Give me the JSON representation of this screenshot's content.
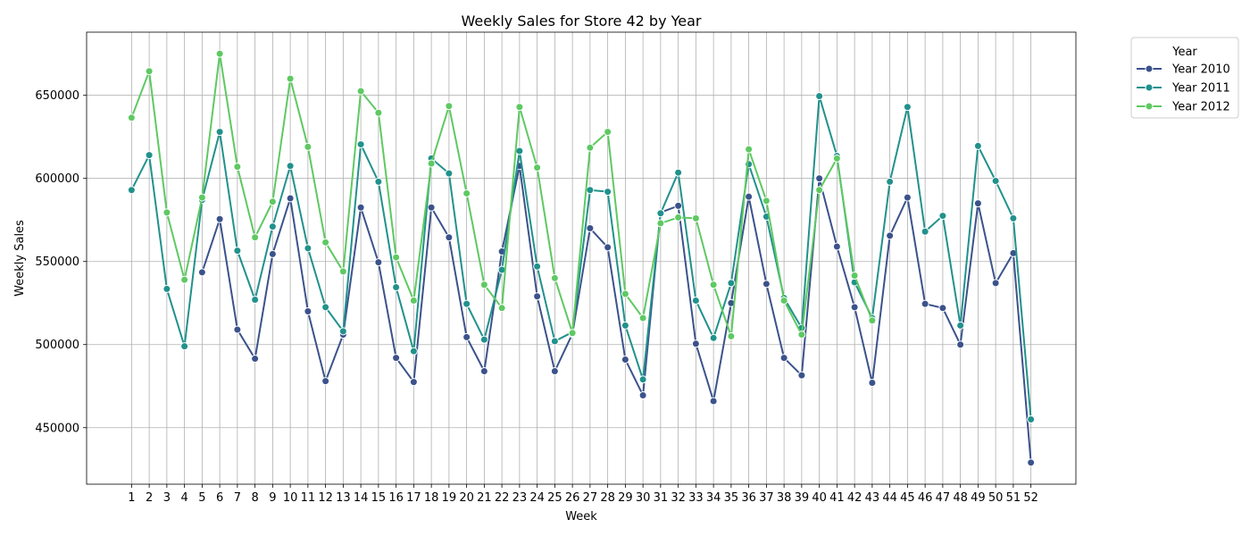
{
  "chart_data": {
    "type": "line",
    "title": "Weekly Sales for Store 42 by Year",
    "xlabel": "Week",
    "ylabel": "Weekly Sales",
    "x": [
      1,
      2,
      3,
      4,
      5,
      6,
      7,
      8,
      9,
      10,
      11,
      12,
      13,
      14,
      15,
      16,
      17,
      18,
      19,
      20,
      21,
      22,
      23,
      24,
      25,
      26,
      27,
      28,
      29,
      30,
      31,
      32,
      33,
      34,
      35,
      36,
      37,
      38,
      39,
      40,
      41,
      42,
      43,
      44,
      45,
      46,
      47,
      48,
      49,
      50,
      51,
      52
    ],
    "xlim": [
      -1.55,
      54.55
    ],
    "ylim": [
      416000,
      688000
    ],
    "yticks": [
      450000,
      500000,
      550000,
      600000,
      650000
    ],
    "grid": true,
    "legend": {
      "title": "Year",
      "placement": "outside-right-top"
    },
    "series": [
      {
        "name": "Year 2010",
        "color": "#3b528b",
        "values": [
          null,
          null,
          null,
          null,
          543500,
          575500,
          509000,
          491500,
          554500,
          588000,
          520000,
          478000,
          506000,
          582500,
          549500,
          492000,
          477500,
          582500,
          564500,
          504500,
          484000,
          556000,
          607500,
          529000,
          484000,
          506500,
          570000,
          558500,
          491000,
          469500,
          579500,
          583500,
          500500,
          466000,
          525000,
          589000,
          536500,
          492000,
          481500,
          600000,
          559000,
          522500,
          477000,
          565500,
          588500,
          524500,
          522000,
          500000,
          585000,
          537000,
          555000,
          429000
        ]
      },
      {
        "name": "Year 2011",
        "color": "#21918c",
        "values": [
          593000,
          614000,
          533500,
          499000,
          587000,
          628000,
          556500,
          527000,
          571000,
          607500,
          558000,
          522500,
          508000,
          620500,
          598000,
          534500,
          496000,
          612000,
          603000,
          524500,
          503000,
          545000,
          616500,
          547000,
          502000,
          507500,
          593000,
          592000,
          511500,
          479000,
          579000,
          603500,
          526500,
          504000,
          537000,
          608500,
          577000,
          528000,
          510000,
          649500,
          613500,
          537500,
          516000,
          598000,
          643000,
          568000,
          577500,
          511500,
          619500,
          598500,
          576000,
          455000
        ]
      },
      {
        "name": "Year 2012",
        "color": "#5ec962",
        "values": [
          636500,
          664500,
          579500,
          539000,
          588500,
          675000,
          607000,
          564500,
          586000,
          660000,
          619000,
          561500,
          544000,
          652500,
          639500,
          552500,
          526500,
          609000,
          643500,
          591000,
          536000,
          522000,
          643000,
          606500,
          540000,
          507000,
          618500,
          628000,
          530500,
          516000,
          573000,
          576500,
          576000,
          536000,
          505000,
          617500,
          586500,
          526500,
          506000,
          593000,
          612000,
          541500,
          514500,
          null,
          null,
          null,
          null,
          null,
          null,
          null,
          null,
          null
        ]
      }
    ]
  }
}
